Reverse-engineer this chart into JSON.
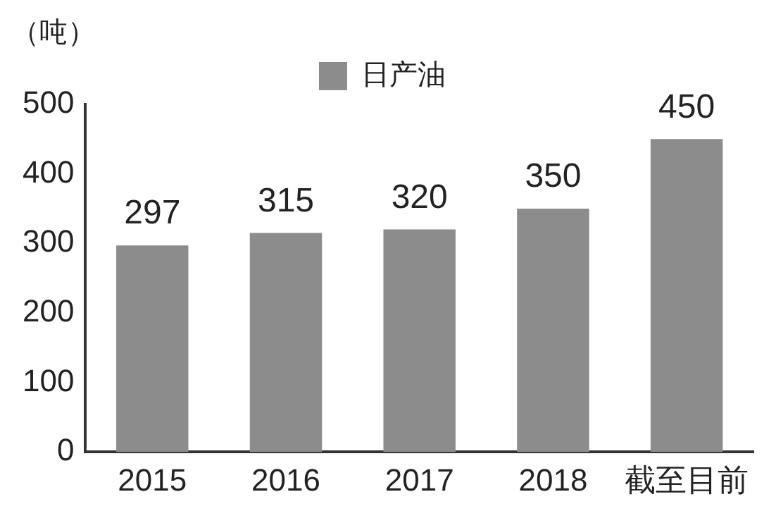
{
  "chart_data": {
    "type": "bar",
    "ylabel": "（吨）",
    "categories": [
      "2015",
      "2016",
      "2017",
      "2018",
      "截至目前"
    ],
    "series": [
      {
        "name": "日产油",
        "color": "#8c8c8c",
        "values": [
          297,
          315,
          320,
          350,
          450
        ]
      }
    ],
    "ylim": [
      0,
      500
    ],
    "yticks": [
      0,
      100,
      200,
      300,
      400,
      500
    ],
    "grid": false,
    "legend": "top",
    "data_labels": true
  }
}
